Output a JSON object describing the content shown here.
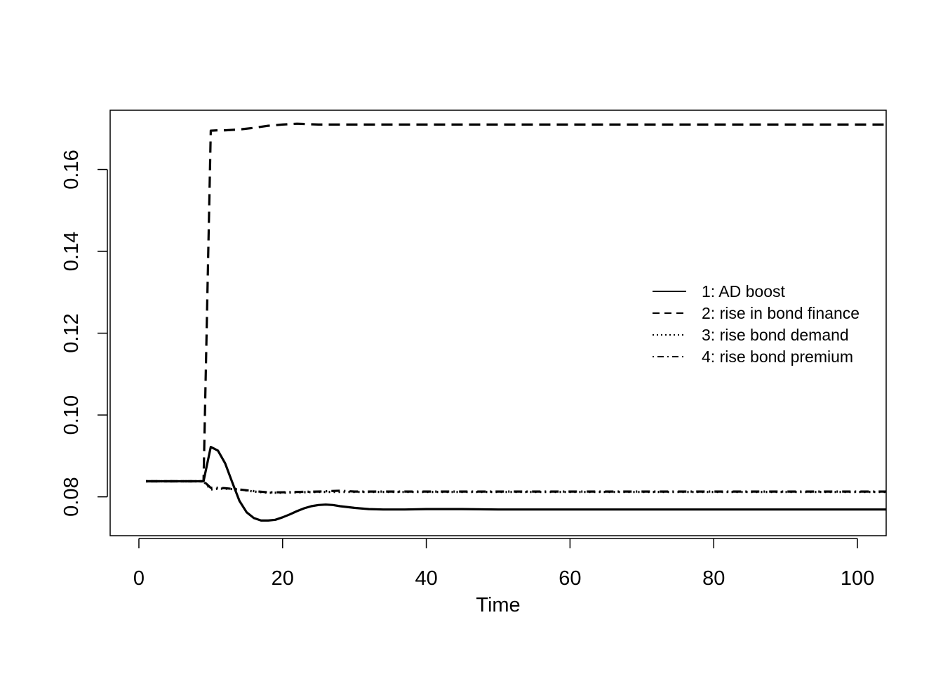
{
  "chart_data": {
    "type": "line",
    "title": "",
    "xlabel": "Time",
    "ylabel": "",
    "xlim": [
      -4,
      104
    ],
    "ylim": [
      0.0705,
      0.1745
    ],
    "x_ticks": [
      {
        "value": 0,
        "label": "0"
      },
      {
        "value": 20,
        "label": "20"
      },
      {
        "value": 40,
        "label": "40"
      },
      {
        "value": 60,
        "label": "60"
      },
      {
        "value": 80,
        "label": "80"
      },
      {
        "value": 100,
        "label": "100"
      }
    ],
    "y_ticks": [
      {
        "value": 0.08,
        "label": "0.08"
      },
      {
        "value": 0.1,
        "label": "0.10"
      },
      {
        "value": 0.12,
        "label": "0.12"
      },
      {
        "value": 0.14,
        "label": "0.14"
      },
      {
        "value": 0.16,
        "label": "0.16"
      }
    ],
    "grid": false,
    "legend_position": "right",
    "series": [
      {
        "name": "1: AD boost",
        "linestyle": "solid",
        "points": [
          [
            1,
            0.0838
          ],
          [
            9,
            0.0838
          ],
          [
            10,
            0.0922
          ],
          [
            11,
            0.0913
          ],
          [
            12,
            0.0882
          ],
          [
            13,
            0.0835
          ],
          [
            14,
            0.079
          ],
          [
            15,
            0.0762
          ],
          [
            16,
            0.0748
          ],
          [
            17,
            0.0742
          ],
          [
            18,
            0.0742
          ],
          [
            19,
            0.0744
          ],
          [
            20,
            0.075
          ],
          [
            21,
            0.0757
          ],
          [
            22,
            0.0765
          ],
          [
            23,
            0.0772
          ],
          [
            24,
            0.0777
          ],
          [
            25,
            0.078
          ],
          [
            26,
            0.0781
          ],
          [
            27,
            0.078
          ],
          [
            28,
            0.0777
          ],
          [
            30,
            0.0773
          ],
          [
            32,
            0.077
          ],
          [
            34,
            0.0769
          ],
          [
            37,
            0.0769
          ],
          [
            40,
            0.077
          ],
          [
            45,
            0.077
          ],
          [
            50,
            0.0769
          ],
          [
            60,
            0.0769
          ],
          [
            80,
            0.0769
          ],
          [
            104,
            0.0769
          ]
        ]
      },
      {
        "name": "2: rise in bond finance",
        "linestyle": "dashed",
        "points": [
          [
            1,
            0.0838
          ],
          [
            9,
            0.0838
          ],
          [
            10,
            0.1695
          ],
          [
            11,
            0.1696
          ],
          [
            12,
            0.1696
          ],
          [
            13,
            0.1697
          ],
          [
            14,
            0.1698
          ],
          [
            16,
            0.1702
          ],
          [
            18,
            0.1707
          ],
          [
            20,
            0.171
          ],
          [
            22,
            0.1712
          ],
          [
            25,
            0.171
          ],
          [
            30,
            0.171
          ],
          [
            40,
            0.171
          ],
          [
            60,
            0.171
          ],
          [
            80,
            0.171
          ],
          [
            104,
            0.171
          ]
        ]
      },
      {
        "name": "3: rise bond demand",
        "linestyle": "dotted",
        "points": [
          [
            1,
            0.0838
          ],
          [
            9,
            0.0838
          ],
          [
            10,
            0.0818
          ],
          [
            11,
            0.082
          ],
          [
            12,
            0.082
          ],
          [
            14,
            0.0818
          ],
          [
            16,
            0.0813
          ],
          [
            18,
            0.081
          ],
          [
            20,
            0.081
          ],
          [
            22,
            0.0811
          ],
          [
            25,
            0.0812
          ],
          [
            30,
            0.0812
          ],
          [
            40,
            0.0812
          ],
          [
            60,
            0.0812
          ],
          [
            80,
            0.0812
          ],
          [
            104,
            0.0812
          ]
        ]
      },
      {
        "name": "4: rise bond premium",
        "linestyle": "dotdash",
        "points": [
          [
            1,
            0.0838
          ],
          [
            9,
            0.0838
          ],
          [
            10,
            0.0822
          ],
          [
            11,
            0.0822
          ],
          [
            12,
            0.0821
          ],
          [
            14,
            0.0818
          ],
          [
            16,
            0.0814
          ],
          [
            18,
            0.0811
          ],
          [
            20,
            0.0811
          ],
          [
            22,
            0.0812
          ],
          [
            25,
            0.0813
          ],
          [
            28,
            0.0815
          ],
          [
            30,
            0.0813
          ],
          [
            40,
            0.0813
          ],
          [
            60,
            0.0813
          ],
          [
            80,
            0.0813
          ],
          [
            104,
            0.0813
          ]
        ]
      }
    ]
  }
}
